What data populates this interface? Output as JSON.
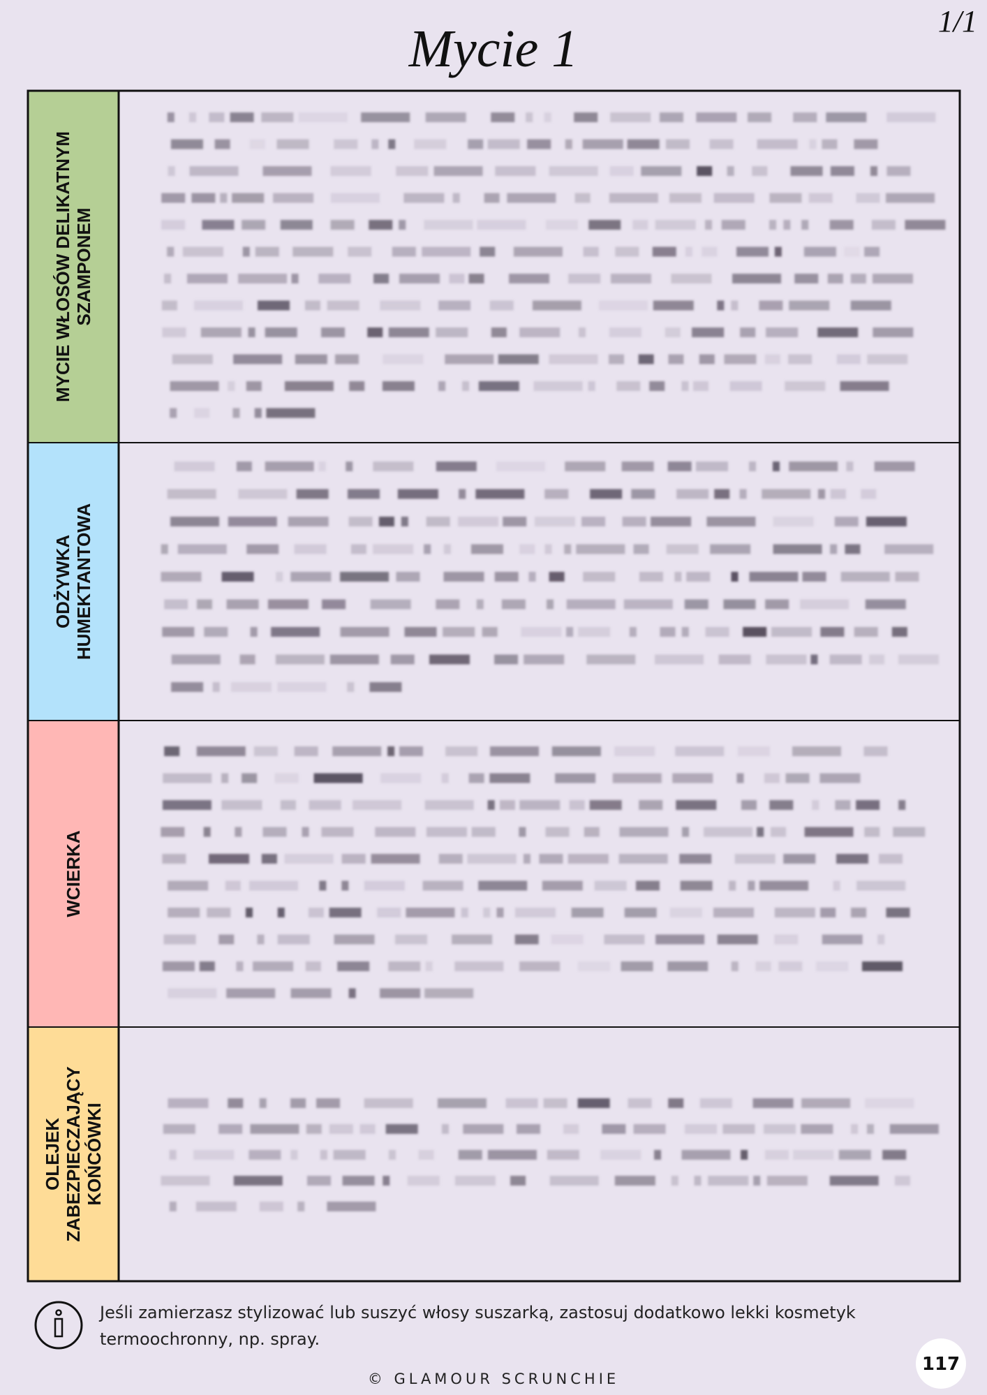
{
  "page_title": "Mycie 1",
  "page_counter": "1/1",
  "table": {
    "rows": [
      {
        "label_lines": [
          "MYCIE WŁOSÓW DELIKATNYM",
          "SZAMPONEM"
        ]
      },
      {
        "label_lines": [
          "ODŻYWKA",
          "HUMEKTANTOWA"
        ]
      },
      {
        "label_lines": [
          "WCIERKA"
        ]
      },
      {
        "label_lines": [
          "OLEJEK",
          "ZABEZPIECZAJĄCY",
          "KOŃCÓWKI"
        ]
      }
    ]
  },
  "note_lines": [
    "Jeśli zamierzasz stylizować lub suszyć włosy suszarką, zastosuj dodatkowo lekki kosmetyk",
    "termoochronny, np. spray."
  ],
  "footer": "© GLAMOUR SCRUNCHIE",
  "page_number": "117"
}
